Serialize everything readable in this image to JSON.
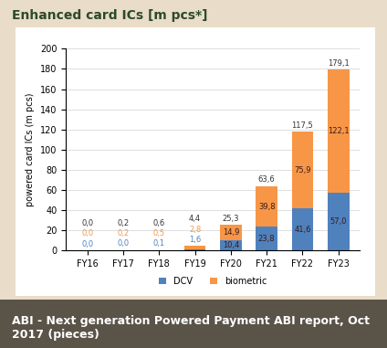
{
  "chart_data": {
    "type": "bar",
    "title": "Enhanced card ICs [m pcs*]",
    "y_label": "powered card ICs (m pcs)",
    "categories": [
      "FY16",
      "FY17",
      "FY18",
      "FY19",
      "FY20",
      "FY21",
      "FY22",
      "FY23"
    ],
    "series": [
      {
        "name": "DCV",
        "color": "#4f81bd",
        "values": [
          0.0,
          0.0,
          0.1,
          1.6,
          10.4,
          23.8,
          41.6,
          57.0
        ],
        "value_labels": [
          "0,0",
          "0,0",
          "0,1",
          "1,6",
          "10,4",
          "23,8",
          "41,6",
          "57,0"
        ]
      },
      {
        "name": "biometric",
        "color": "#f79646",
        "values": [
          0.0,
          0.2,
          0.5,
          2.8,
          14.9,
          39.8,
          75.9,
          122.1
        ],
        "value_labels": [
          "0,0",
          "0,2",
          "0,5",
          "2,8",
          "14,9",
          "39,8",
          "75,9",
          "122,1"
        ]
      }
    ],
    "totals": {
      "values": [
        0.0,
        0.2,
        0.6,
        4.4,
        25.3,
        63.6,
        117.5,
        179.1
      ],
      "value_labels": [
        "0,0",
        "0,2",
        "0,6",
        "4,4",
        "25,3",
        "63,6",
        "117,5",
        "179,1"
      ]
    },
    "stacked": true,
    "data_labels": true,
    "grid": true,
    "legend": "bottom",
    "ylim": [
      0,
      200
    ],
    "yticks": [
      0,
      20,
      40,
      60,
      80,
      100,
      120,
      140,
      160,
      180,
      200
    ],
    "source": "ABI - Next generation Powered Payment ABI report, Oct 2017 (pieces)"
  }
}
